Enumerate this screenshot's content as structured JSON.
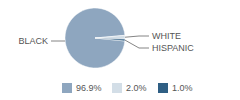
{
  "chart_data": {
    "type": "pie",
    "categories": [
      "BLACK",
      "WHITE",
      "HISPANIC"
    ],
    "values": [
      96.9,
      2.0,
      1.0
    ],
    "value_labels": [
      "96.9%",
      "2.0%",
      "1.0%"
    ],
    "colors": [
      "#8ea6bf",
      "#d3dee7",
      "#2f5f84"
    ],
    "legend": "bottom"
  }
}
